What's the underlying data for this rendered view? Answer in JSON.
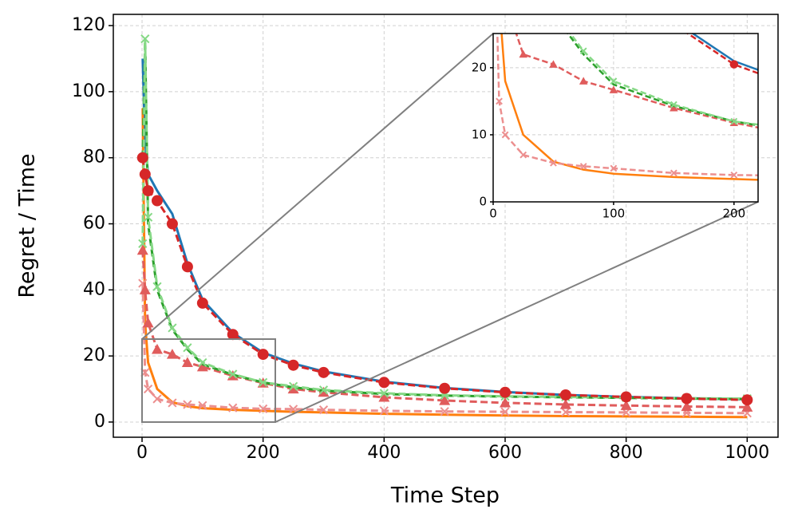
{
  "chart_data": {
    "type": "line",
    "xlabel": "Time Step",
    "ylabel": "Regret / Time",
    "x": [
      1,
      5,
      10,
      25,
      50,
      75,
      100,
      150,
      200,
      250,
      300,
      400,
      500,
      600,
      700,
      800,
      900,
      1000
    ],
    "series": [
      {
        "color": "#1f77b4",
        "dashed": false,
        "marker": "none",
        "values": [
          110,
          85,
          75,
          70,
          63,
          48,
          37,
          27,
          21,
          17.7,
          15.3,
          12.2,
          10.3,
          9.1,
          8.2,
          7.6,
          7.2,
          6.9
        ]
      },
      {
        "color": "#ff7f0e",
        "dashed": false,
        "marker": "none",
        "values": [
          95,
          30,
          18,
          10,
          6,
          4.8,
          4.2,
          3.7,
          3.4,
          3.1,
          2.9,
          2.5,
          2.2,
          2.0,
          1.8,
          1.7,
          1.6,
          1.5
        ]
      },
      {
        "color": "#ec8f8f",
        "dashed": true,
        "marker": "x",
        "values": [
          42,
          15,
          10,
          7,
          5.8,
          5.3,
          5,
          4.3,
          4.0,
          3.9,
          3.7,
          3.4,
          3.2,
          3.1,
          3,
          2.9,
          2.8,
          2.7
        ]
      },
      {
        "color": "#e05c5c",
        "dashed": true,
        "marker": "triangle",
        "values": [
          52,
          40,
          30,
          22,
          20.5,
          18,
          16.7,
          14,
          11.8,
          10,
          9,
          7.5,
          6.5,
          5.8,
          5.3,
          5,
          4.7,
          4.5
        ]
      },
      {
        "color": "#2ca02c",
        "dashed": true,
        "marker": "none",
        "values": [
          80,
          115,
          60,
          40,
          28,
          22,
          17.5,
          14.3,
          12,
          10.5,
          9.5,
          8.5,
          8,
          7.7,
          7.5,
          7.3,
          7.1,
          7
        ]
      },
      {
        "color": "#86d986",
        "dashed": true,
        "marker": "x",
        "values": [
          54,
          116,
          62,
          41,
          28.5,
          22.5,
          18,
          14.5,
          12,
          10.8,
          9.7,
          8.7,
          8.1,
          7.8,
          7.6,
          7.4,
          7.2,
          7.1
        ]
      },
      {
        "color": "#d62728",
        "dashed": true,
        "marker": "circle",
        "values": [
          80,
          75,
          70,
          67,
          60,
          47,
          36,
          26.5,
          20.5,
          17.2,
          15,
          12,
          10.2,
          9,
          8.2,
          7.6,
          7.1,
          6.7
        ]
      }
    ],
    "xlim": [
      -47.5,
      1051
    ],
    "ylim": [
      -4.6,
      123.4
    ],
    "xticks": [
      0,
      200,
      400,
      600,
      800,
      1000
    ],
    "yticks": [
      0,
      20,
      40,
      60,
      80,
      100,
      120
    ],
    "grid": true,
    "inset": {
      "xlim": [
        0,
        220
      ],
      "ylim": [
        0,
        25.1
      ],
      "xticks": [
        0,
        100,
        200
      ],
      "yticks": [
        0,
        10,
        20
      ]
    }
  }
}
